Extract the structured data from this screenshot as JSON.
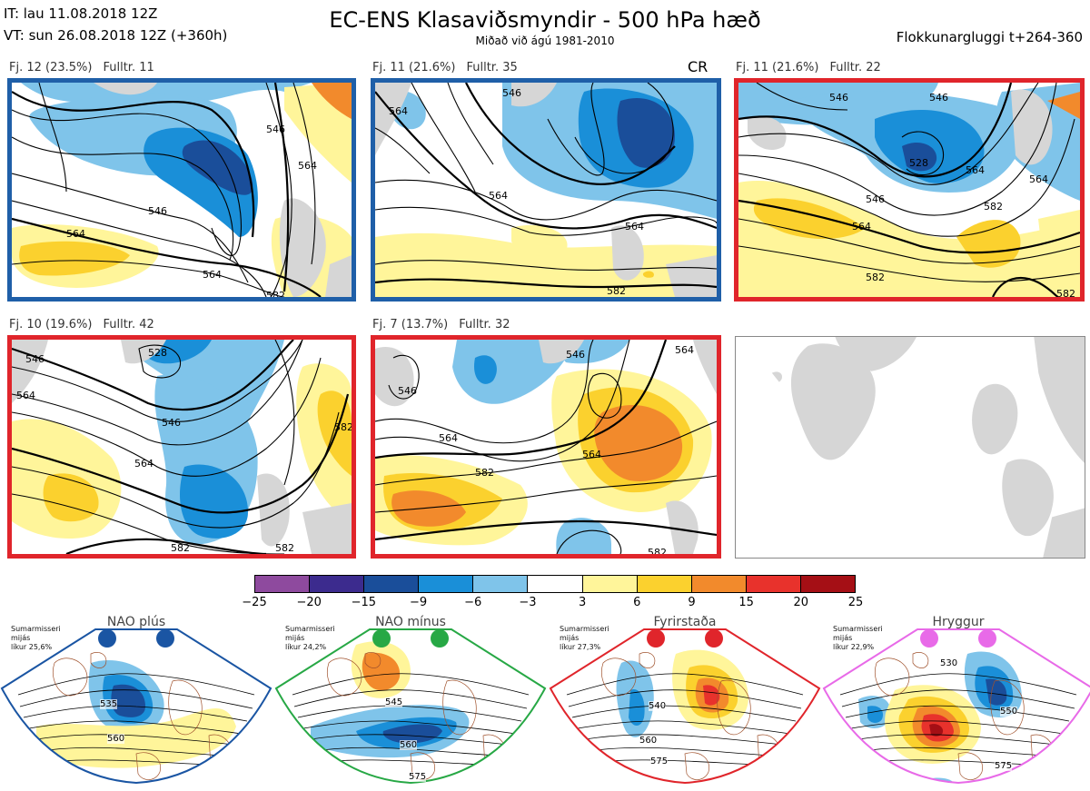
{
  "header": {
    "it": "IT: lau 11.08.2018 12Z",
    "vt": "VT: sun 26.08.2018 12Z  (+360h)",
    "title": "EC-ENS Klasaviðsmyndir - 500 hPa hæð",
    "subtitle": "Miðað við ágú 1981-2010",
    "window": "Flokkunargluggi t+264-360"
  },
  "panels": [
    {
      "id": "p1",
      "fj": "Fj. 12 (23.5%)",
      "fulltr": "Fulltr. 11",
      "badge": "",
      "border": "#1f5fa8",
      "contours": [
        "546",
        "564",
        "564",
        "564",
        "546",
        "582"
      ]
    },
    {
      "id": "p2",
      "fj": "Fj. 11 (21.6%)",
      "fulltr": "Fulltr. 35",
      "badge": "CR",
      "border": "#1f5fa8",
      "contours": [
        "546",
        "564",
        "564",
        "564",
        "582"
      ]
    },
    {
      "id": "p3",
      "fj": "Fj. 11 (21.6%)",
      "fulltr": "Fulltr. 22",
      "badge": "",
      "border": "#e0252b",
      "contours": [
        "546",
        "546",
        "564",
        "528",
        "564",
        "546",
        "564",
        "582",
        "582",
        "582"
      ]
    },
    {
      "id": "p4",
      "fj": "Fj. 10 (19.6%)",
      "fulltr": "Fulltr. 42",
      "badge": "",
      "border": "#e0252b",
      "contours": [
        "546",
        "564",
        "546",
        "528",
        "564",
        "582",
        "582",
        "582"
      ]
    },
    {
      "id": "p5",
      "fj": "Fj. 7 (13.7%)",
      "fulltr": "Fulltr. 32",
      "badge": "",
      "border": "#e0252b",
      "contours": [
        "546",
        "564",
        "546",
        "564",
        "564",
        "582",
        "582"
      ]
    }
  ],
  "colorbar": {
    "ticks": [
      "−25",
      "−20",
      "−15",
      "−9",
      "−6",
      "−3",
      "3",
      "6",
      "9",
      "15",
      "20",
      "25"
    ],
    "colors": [
      "#8e4a9e",
      "#3c2b8e",
      "#1a4e9a",
      "#1a8fd8",
      "#7fc4ea",
      "#ffffff",
      "#fff59a",
      "#fbd12e",
      "#f28a2c",
      "#e8322c",
      "#a50f15"
    ]
  },
  "regimes": [
    {
      "title": "NAO plús",
      "line1": "Sumarmisseri",
      "line2": "mijás",
      "line3": "líkur 25,6%",
      "color": "#1a55a3",
      "contours": [
        "535",
        "560"
      ]
    },
    {
      "title": "NAO mínus",
      "line1": "Sumarmisseri",
      "line2": "mijás",
      "line3": "líkur 24,2%",
      "color": "#27a845",
      "contours": [
        "545",
        "560",
        "575"
      ]
    },
    {
      "title": "Fyrirstaða",
      "line1": "Sumarmisseri",
      "line2": "mijás",
      "line3": "líkur 27,3%",
      "color": "#e0252b",
      "contours": [
        "540",
        "560",
        "575"
      ]
    },
    {
      "title": "Hryggur",
      "line1": "Sumarmisseri",
      "line2": "mijás",
      "line3": "líkur 22,9%",
      "color": "#e86ae8",
      "contours": [
        "530",
        "550",
        "575"
      ]
    }
  ]
}
